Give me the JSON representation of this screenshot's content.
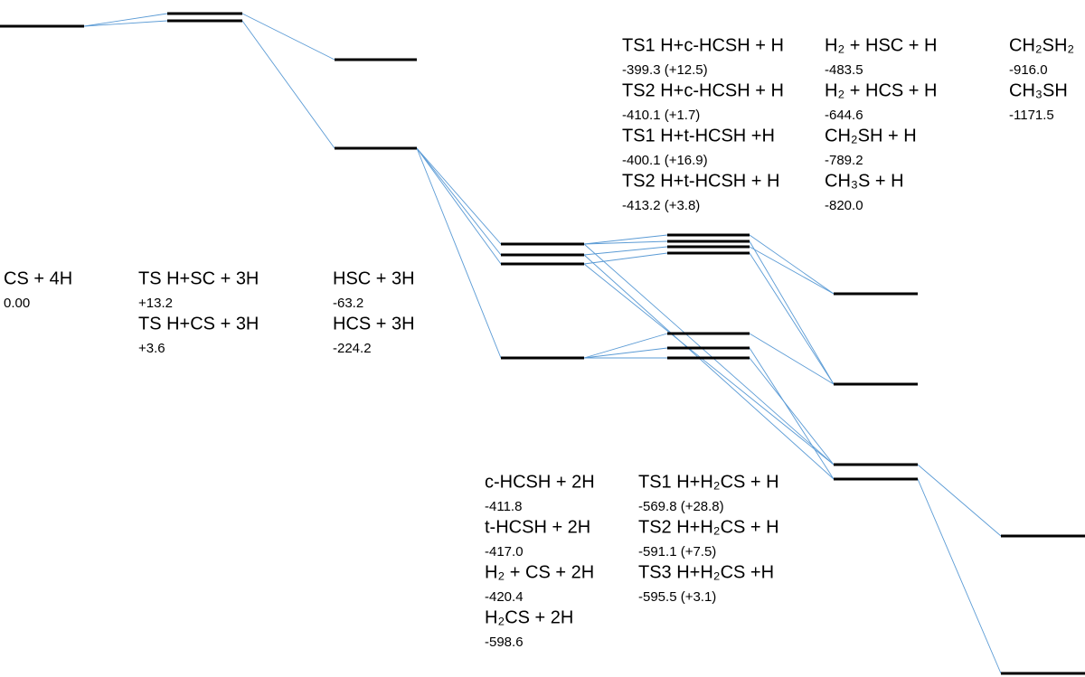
{
  "groups": [
    {
      "items": [
        {
          "name": "CS + 4H",
          "energy": "0.00"
        }
      ]
    },
    {
      "items": [
        {
          "name": "TS H+SC + 3H",
          "energy": "+13.2"
        },
        {
          "name": "TS H+CS + 3H",
          "energy": "+3.6"
        }
      ]
    },
    {
      "items": [
        {
          "name": "HSC + 3H",
          "energy": "-63.2"
        },
        {
          "name": "HCS + 3H",
          "energy": "-224.2"
        }
      ]
    },
    {
      "items": [
        {
          "name": "c-HCSH + 2H",
          "energy": "-411.8"
        },
        {
          "name": "t-HCSH + 2H",
          "energy": "-417.0"
        },
        {
          "name": "H₂ + CS + 2H",
          "energy": "-420.4"
        },
        {
          "name": "H₂CS + 2H",
          "energy": "-598.6"
        }
      ]
    },
    {
      "items": [
        {
          "name": "TS1 H+c-HCSH + H",
          "energy": "-399.3 (+12.5)"
        },
        {
          "name": "TS2 H+c-HCSH + H",
          "energy": "-410.1 (+1.7)"
        },
        {
          "name": "TS1 H+t-HCSH +H",
          "energy": "-400.1 (+16.9)"
        },
        {
          "name": "TS2 H+t-HCSH + H",
          "energy": "-413.2 (+3.8)"
        }
      ]
    },
    {
      "items": [
        {
          "name": "TS1 H+H₂CS + H",
          "energy": "-569.8 (+28.8)"
        },
        {
          "name": "TS2 H+H₂CS + H",
          "energy": "-591.1 (+7.5)"
        },
        {
          "name": "TS3 H+H₂CS +H",
          "energy": "-595.5 (+3.1)"
        }
      ]
    },
    {
      "items": [
        {
          "name": "H₂ + HSC + H",
          "energy": "-483.5"
        },
        {
          "name": "H₂ + HCS + H",
          "energy": "-644.6"
        },
        {
          "name": "CH₂SH + H",
          "energy": "-789.2"
        },
        {
          "name": "CH₃S + H",
          "energy": "-820.0"
        }
      ]
    },
    {
      "items": [
        {
          "name": "CH₂SH₂",
          "energy": "-916.0"
        },
        {
          "name": "CH₃SH",
          "energy": "-1171.5"
        }
      ]
    }
  ]
}
